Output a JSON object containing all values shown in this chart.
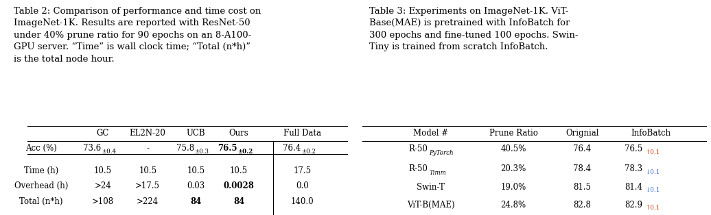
{
  "bg_color": "#ffffff",
  "table2": {
    "caption": "Table 2: Comparison of performance and time cost on\nImageNet-1K. Results are reported with ResNet-50\nunder 40% prune ratio for 90 epochs on an 8-A100-\nGPU server. “Time” is wall clock time; “Total (n*h)”\nis the total node hour.",
    "col_headers": [
      "",
      "GC",
      "EL2N-20",
      "UCB",
      "Ours",
      "Full Data"
    ],
    "rows": [
      {
        "label": "Acc (%)",
        "values": [
          "73.6±0.4",
          "-",
          "75.8±0.3",
          "76.5±0.2",
          "76.4±0.2"
        ],
        "bold": [
          false,
          false,
          false,
          true,
          false
        ]
      },
      {
        "label": "Time (h)",
        "values": [
          "10.5",
          "10.5",
          "10.5",
          "10.5",
          "17.5"
        ],
        "bold": [
          false,
          false,
          false,
          false,
          false
        ]
      },
      {
        "label": "Overhead (h)",
        "values": [
          ">24",
          ">17.5",
          "0.03",
          "0.0028",
          "0.0"
        ],
        "bold": [
          false,
          false,
          false,
          true,
          false
        ]
      },
      {
        "label": "Total (n*h)",
        "values": [
          ">108",
          ">224",
          "84",
          "84",
          "140.0"
        ],
        "bold": [
          false,
          false,
          true,
          true,
          false
        ]
      }
    ]
  },
  "table3": {
    "caption": "Table 3: Experiments on ImageNet-1K. ViT-\nBase(MAE) is pretrained with InfoBatch for\n300 epochs and fine-tuned 100 epochs. Swin-\nTiny is trained from scratch InfoBatch.",
    "col_headers": [
      "Model #",
      "Prune Ratio",
      "Orignial",
      "InfoBatch"
    ],
    "rows": [
      {
        "model": "R-50",
        "model_sub": "PyTorch",
        "model_sub_italic": true,
        "prune": "40.5%",
        "original": "76.4",
        "infobatch": "76.5",
        "delta": "↑0.1",
        "delta_color": "#cc3300"
      },
      {
        "model": "R-50",
        "model_sub": "Timm",
        "model_sub_italic": true,
        "prune": "20.3%",
        "original": "78.4",
        "infobatch": "78.3",
        "delta": "↓0.1",
        "delta_color": "#3366cc"
      },
      {
        "model": "Swin-T",
        "model_sub": "",
        "model_sub_italic": false,
        "prune": "19.0%",
        "original": "81.5",
        "infobatch": "81.4",
        "delta": "↓0.1",
        "delta_color": "#3366cc"
      },
      {
        "model": "ViT-B(MAE)",
        "model_sub": "",
        "model_sub_italic": false,
        "prune": "24.8%",
        "original": "82.8",
        "infobatch": "82.9",
        "delta": "↑0.1",
        "delta_color": "#cc3300"
      }
    ]
  }
}
